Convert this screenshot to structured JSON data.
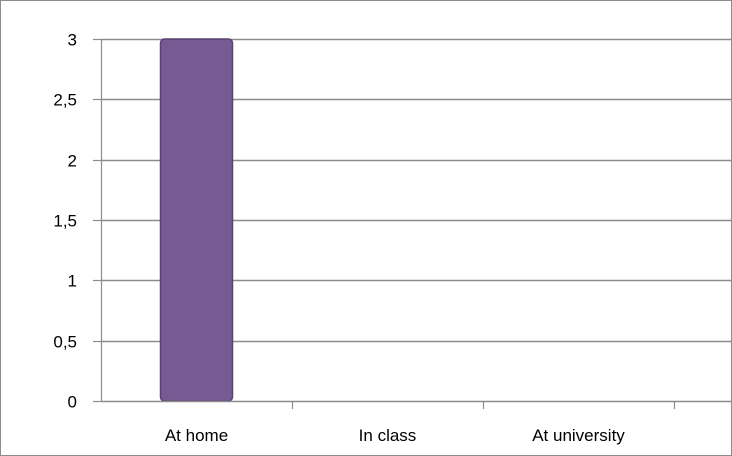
{
  "colors": {
    "bar_fill": "#775a93",
    "bar_edge": "#5a4172",
    "gridline": "#8c8c8c",
    "axis": "#8c8c8c",
    "frame": "#8c8c8c",
    "text": "#000000"
  },
  "chart_data": {
    "type": "bar",
    "title": "",
    "xlabel": "",
    "ylabel": "",
    "categories": [
      "At home",
      "In class",
      "At university"
    ],
    "series": [
      {
        "values": [
          3,
          0,
          0
        ]
      }
    ],
    "ylim": [
      0,
      3
    ],
    "yticks": [
      0,
      0.5,
      1,
      1.5,
      2,
      2.5,
      3
    ],
    "ytick_labels": [
      "0",
      "0,5",
      "1",
      "1,5",
      "2",
      "2,5",
      "3"
    ],
    "grid": true,
    "legend": "none"
  }
}
